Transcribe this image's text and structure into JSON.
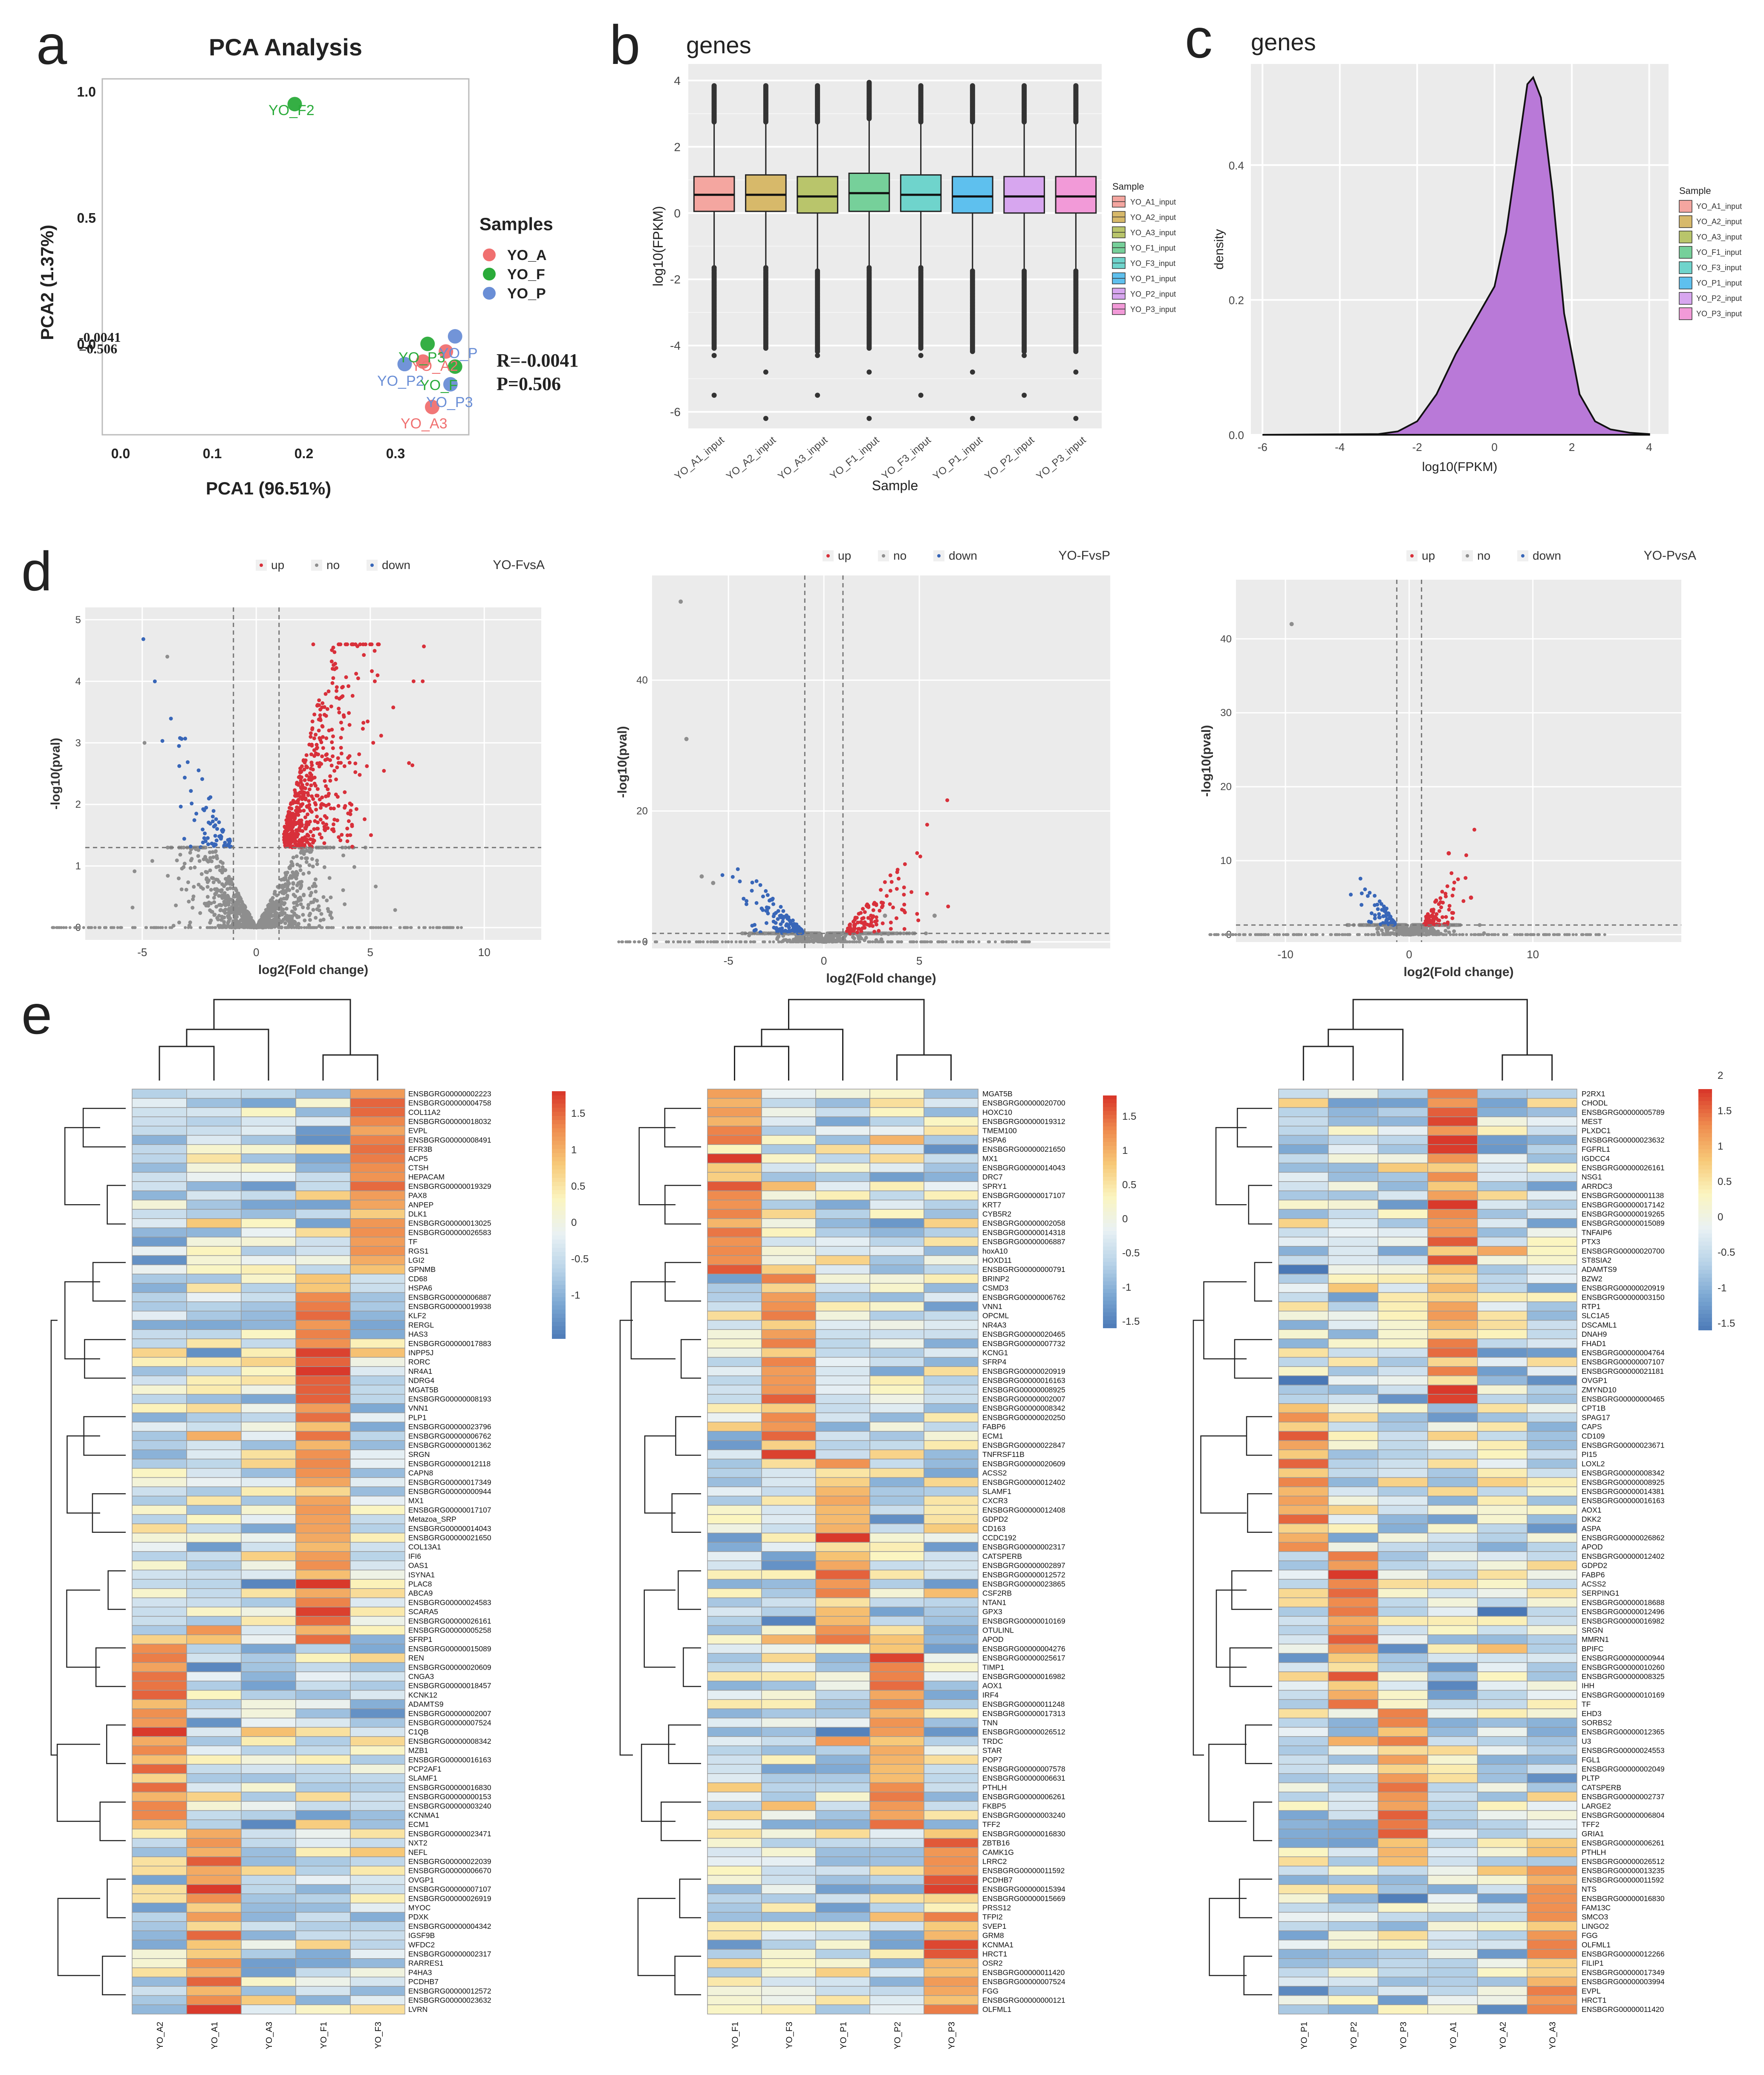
{
  "panel_letters": [
    "a",
    "b",
    "c",
    "d",
    "e"
  ],
  "colors": {
    "YO_A": "#f07070",
    "YO_F": "#2aab3a",
    "YO_P": "#6a8ed6",
    "up": "#d8303a",
    "down": "#3866b8",
    "no": "#8e8e8e",
    "box": [
      "#f4a6a0",
      "#d7b96a",
      "#b9c56b",
      "#76d09a",
      "#6fd4cc",
      "#5ec0ee",
      "#d7a6ef",
      "#f29ad8"
    ],
    "grey_bg": "#ebebeb",
    "density_fill": "#b979d8"
  },
  "chart_data": [
    {
      "id": "pca",
      "type": "scatter",
      "title": "PCA Analysis",
      "xlabel": "PCA1 (96.51%)",
      "ylabel": "PCA2 (1.37%)",
      "xlim": [
        -0.02,
        0.38
      ],
      "ylim": [
        -0.36,
        1.05
      ],
      "xticks": [
        "0.0",
        "0.1",
        "0.2",
        "0.3"
      ],
      "yticks": [
        "0.0",
        "0.5",
        "1.0"
      ],
      "tick_overlay": [
        "-0.0041",
        "=0.506"
      ],
      "legend_title": "Samples",
      "legend": [
        "YO_A",
        "YO_F",
        "YO_P"
      ],
      "stats": [
        "R=-0.0041",
        "P=0.506"
      ],
      "points": [
        {
          "label": "YO_F2",
          "group": "YO_F",
          "x": 0.19,
          "y": 0.95
        },
        {
          "label": "YO_F1",
          "group": "YO_F",
          "x": 0.335,
          "y": 0.0
        },
        {
          "label": "YO_F3",
          "group": "YO_F",
          "x": 0.365,
          "y": -0.09
        },
        {
          "label": "YO_A1",
          "group": "YO_A",
          "x": 0.355,
          "y": -0.03
        },
        {
          "label": "YO_A2",
          "group": "YO_A",
          "x": 0.33,
          "y": -0.07
        },
        {
          "label": "YO_A3",
          "group": "YO_A",
          "x": 0.34,
          "y": -0.25
        },
        {
          "label": "YO_P1",
          "group": "YO_P",
          "x": 0.365,
          "y": 0.03
        },
        {
          "label": "YO_P2",
          "group": "YO_P",
          "x": 0.31,
          "y": -0.08
        },
        {
          "label": "YO_P3",
          "group": "YO_P",
          "x": 0.36,
          "y": -0.16
        }
      ],
      "visible_labels": [
        "YO_F2",
        "YO_P2",
        "YO_A3",
        "YO_P3",
        "YO_F",
        "YO_A2",
        "YO_P3",
        "YO_P"
      ]
    },
    {
      "id": "box",
      "type": "box",
      "title": "genes",
      "xlabel": "Sample",
      "ylabel": "log10(FPKM)",
      "ylim": [
        -6.5,
        4.5
      ],
      "yticks": [
        "4",
        "2",
        "0",
        "-2",
        "-4",
        "-6"
      ],
      "legend_title": "Sample",
      "categories": [
        "YO_A1_input",
        "YO_A2_input",
        "YO_A3_input",
        "YO_F1_input",
        "YO_F3_input",
        "YO_P1_input",
        "YO_P2_input",
        "YO_P3_input"
      ],
      "q1": [
        0.05,
        0.05,
        0.0,
        0.05,
        0.05,
        0.0,
        0.0,
        0.0
      ],
      "median": [
        0.55,
        0.55,
        0.5,
        0.6,
        0.55,
        0.5,
        0.5,
        0.5
      ],
      "q3": [
        1.1,
        1.15,
        1.1,
        1.2,
        1.15,
        1.1,
        1.1,
        1.1
      ],
      "whisker_low": [
        -1.6,
        -1.6,
        -1.7,
        -1.6,
        -1.6,
        -1.7,
        -1.7,
        -1.7
      ],
      "whisker_high": [
        2.7,
        2.7,
        2.7,
        2.8,
        2.7,
        2.7,
        2.7,
        2.7
      ]
    },
    {
      "id": "density",
      "type": "area",
      "title": "genes",
      "xlabel": "log10(FPKM)",
      "ylabel": "density",
      "xlim": [
        -6.3,
        4.5
      ],
      "ylim": [
        0,
        0.55
      ],
      "xticks": [
        "-6",
        "-4",
        "-2",
        "0",
        "2",
        "4"
      ],
      "yticks": [
        "0.0",
        "0.2",
        "0.4"
      ],
      "legend_title": "Sample",
      "legend": [
        "YO_A1_input",
        "YO_A2_input",
        "YO_A3_input",
        "YO_F1_input",
        "YO_F3_input",
        "YO_P1_input",
        "YO_P2_input",
        "YO_P3_input"
      ],
      "x": [
        -6,
        -3,
        -2.5,
        -2,
        -1.5,
        -1,
        -0.5,
        0,
        0.3,
        0.6,
        0.85,
        1.0,
        1.2,
        1.5,
        1.8,
        2.2,
        2.6,
        3,
        3.5,
        4
      ],
      "y": [
        0,
        0.001,
        0.005,
        0.02,
        0.06,
        0.12,
        0.17,
        0.22,
        0.3,
        0.42,
        0.52,
        0.53,
        0.5,
        0.36,
        0.18,
        0.06,
        0.02,
        0.008,
        0.003,
        0.001
      ]
    }
  ],
  "volcano": [
    {
      "title": "YO-FvsA",
      "xlabel": "log2(Fold change)",
      "ylabel": "-log10(pval)",
      "xlim": [
        -7.5,
        12.5
      ],
      "ylim": [
        -0.2,
        5.2
      ],
      "xticks": [
        "-5",
        "0",
        "5",
        "10"
      ],
      "yticks": [
        "0",
        "1",
        "2",
        "3",
        "4",
        "5"
      ],
      "legend": [
        "up",
        "no",
        "down"
      ],
      "vlines": [
        -1,
        1
      ],
      "hline": 1.3
    },
    {
      "title": "YO-FvsP",
      "xlabel": "log2(Fold change)",
      "ylabel": "-log10(pval)",
      "xlim": [
        -9,
        15
      ],
      "ylim": [
        -1,
        56
      ],
      "xticks": [
        "-5",
        "0",
        "5"
      ],
      "yticks": [
        "0",
        "20",
        "40"
      ],
      "legend": [
        "up",
        "no",
        "down"
      ],
      "vlines": [
        -1,
        1
      ],
      "hline": 1.3
    },
    {
      "title": "YO-PvsA",
      "xlabel": "log2(Fold change)",
      "ylabel": "-log10(pval)",
      "xlim": [
        -14,
        22
      ],
      "ylim": [
        -1,
        48
      ],
      "xticks": [
        "-10",
        "0",
        "10"
      ],
      "yticks": [
        "0",
        "10",
        "20",
        "30",
        "40"
      ],
      "legend": [
        "up",
        "no",
        "down"
      ],
      "vlines": [
        -1,
        1
      ],
      "hline": 1.3
    }
  ],
  "heatmaps": [
    {
      "samples": [
        "YO_A2",
        "YO_A1",
        "YO_A3",
        "YO_F1",
        "YO_F3"
      ],
      "scale": [
        "1.5",
        "1",
        "0.5",
        "0",
        "-0.5",
        "-1"
      ],
      "genes": [
        "ENSBGRG00000002223",
        "ENSBGRG00000004758",
        "COL11A2",
        "ENSBGRG00000018032",
        "EVPL",
        "ENSBGRG00000008491",
        "EFR3B",
        "ACP5",
        "CTSH",
        "HEPACAM",
        "ENSBGRG00000019329",
        "PAX8",
        "ANPEP",
        "DLK1",
        "ENSBGRG00000013025",
        "ENSBGRG00000026583",
        "TF",
        "RGS1",
        "LGI2",
        "GPNMB",
        "CD68",
        "HSPA6",
        "ENSBGRG00000006887",
        "ENSBGRG00000019938",
        "KLF2",
        "RERGL",
        "HAS3",
        "ENSBGRG00000017883",
        "INPP5J",
        "RORC",
        "NR4A1",
        "NDRG4",
        "MGAT5B",
        "ENSBGRG00000008193",
        "VNN1",
        "PLP1",
        "ENSBGRG00000023796",
        "ENSBGRG00000006762",
        "ENSBGRG00000001362",
        "SRGN",
        "ENSBGRG00000012118",
        "CAPN8",
        "ENSBGRG00000017349",
        "ENSBGRG00000000944",
        "MX1",
        "ENSBGRG00000017107",
        "Metazoa_SRP",
        "ENSBGRG00000014043",
        "ENSBGRG00000021650",
        "COL13A1",
        "IFI6",
        "OAS1",
        "ISYNA1",
        "PLAC8",
        "ABCA9",
        "ENSBGRG00000024583",
        "SCARA5",
        "ENSBGRG00000026161",
        "ENSBGRG00000005258",
        "SFRP1",
        "ENSBGRG00000015089",
        "REN",
        "ENSBGRG00000020609",
        "CNGA3",
        "ENSBGRG00000018457",
        "KCNK12",
        "ADAMTS9",
        "ENSBGRG00000002007",
        "ENSBGRG00000007524",
        "C1QB",
        "ENSBGRG00000008342",
        "MZB1",
        "ENSBGRG00000016163",
        "PCP2AF1",
        "SLAMF1",
        "ENSBGRG00000016830",
        "ENSBGRG00000000153",
        "ENSBGRG00000003240",
        "KCNMA1",
        "ECM1",
        "ENSBGRG00000023471",
        "NXT2",
        "NEFL",
        "ENSBGRG00000022039",
        "ENSBGRG00000006670",
        "OVGP1",
        "ENSBGRG00000007107",
        "ENSBGRG00000026919",
        "MYOC",
        "PDXK",
        "ENSBGRG00000004342",
        "IGSF9B",
        "WFDC2",
        "ENSBGRG00000002317",
        "RARRES1",
        "P4HA3",
        "PCDHB7",
        "ENSBGRG00000012572",
        "ENSBGRG00000023632",
        "LVRN"
      ]
    },
    {
      "samples": [
        "YO_F1",
        "YO_F3",
        "YO_P1",
        "YO_P2",
        "YO_P3"
      ],
      "scale": [
        "1.5",
        "1",
        "0.5",
        "0",
        "-0.5",
        "-1",
        "-1.5"
      ],
      "genes": [
        "MGAT5B",
        "ENSBGRG00000020700",
        "HOXC10",
        "ENSBGRG00000019312",
        "TMEM100",
        "HSPA6",
        "ENSBGRG00000021650",
        "MX1",
        "ENSBGRG00000014043",
        "DRC7",
        "SPRY1",
        "ENSBGRG00000017107",
        "KRT7",
        "CYB5R2",
        "ENSBGRG00000002058",
        "ENSBGRG00000014318",
        "ENSBGRG00000006887",
        "hoxA10",
        "HOXD11",
        "ENSBGRG00000000791",
        "BRINP2",
        "CSMD3",
        "ENSBGRG00000006762",
        "VNN1",
        "OPCML",
        "NR4A3",
        "ENSBGRG00000020465",
        "ENSBGRG00000007732",
        "KCNG1",
        "SFRP4",
        "ENSBGRG00000020919",
        "ENSBGRG00000016163",
        "ENSBGRG00000008925",
        "ENSBGRG00000002007",
        "ENSBGRG00000008342",
        "ENSBGRG00000020250",
        "FABP6",
        "ECM1",
        "ENSBGRG00000022847",
        "TNFRSF11B",
        "ENSBGRG00000020609",
        "ACSS2",
        "ENSBGRG00000012402",
        "SLAMF1",
        "CXCR3",
        "ENSBGRG00000012408",
        "GDPD2",
        "CD163",
        "CCDC192",
        "ENSBGRG00000002317",
        "CATSPERB",
        "ENSBGRG00000002897",
        "ENSBGRG00000012572",
        "ENSBGRG00000023865",
        "CSF2RB",
        "NTAN1",
        "GPX3",
        "ENSBGRG00000010169",
        "OTULINL",
        "APOD",
        "ENSBGRG00000004276",
        "ENSBGRG00000025617",
        "TIMP1",
        "ENSBGRG00000016982",
        "AOX1",
        "IRF4",
        "ENSBGRG00000011248",
        "ENSBGRG00000017313",
        "TNN",
        "ENSBGRG00000026512",
        "TRDC",
        "STAR",
        "POP7",
        "ENSBGRG00000007578",
        "ENSBGRG00000006631",
        "PTHLH",
        "ENSBGRG00000006261",
        "FKBP5",
        "ENSBGRG00000003240",
        "TFF2",
        "ENSBGRG00000016830",
        "ZBTB16",
        "CAMK1G",
        "LRRC2",
        "ENSBGRG00000011592",
        "PCDHB7",
        "ENSBGRG00000015394",
        "ENSBGRG00000015669",
        "PRSS12",
        "TFPI2",
        "SVEP1",
        "GRM8",
        "KCNMA1",
        "HRCT1",
        "OSR2",
        "ENSBGRG00000011420",
        "ENSBGRG00000007524",
        "FGG",
        "ENSBGRG00000000121",
        "OLFML1"
      ]
    },
    {
      "samples": [
        "YO_P1",
        "YO_P2",
        "YO_P3",
        "YO_A1",
        "YO_A2",
        "YO_A3"
      ],
      "scale": [
        "2",
        "1.5",
        "1",
        "0.5",
        "0",
        "-0.5",
        "-1",
        "-1.5"
      ],
      "genes": [
        "P2RX1",
        "CHODL",
        "ENSBGRG00000005789",
        "MEST",
        "PLXDC1",
        "ENSBGRG00000023632",
        "FGFRL1",
        "IGDCC4",
        "ENSBGRG00000026161",
        "NSG1",
        "ARRDC3",
        "ENSBGRG00000001138",
        "ENSBGRG00000017142",
        "ENSBGRG00000019265",
        "ENSBGRG00000015089",
        "TNFAIP6",
        "PTX3",
        "ENSBGRG00000020700",
        "ST8SIA2",
        "ADAMTS9",
        "BZW2",
        "ENSBGRG00000020919",
        "ENSBGRG00000003150",
        "RTP1",
        "SLC1A5",
        "DSCAML1",
        "DNAH9",
        "FHAD1",
        "ENSBGRG00000004764",
        "ENSBGRG00000007107",
        "ENSBGRG00000021181",
        "OVGP1",
        "ZMYND10",
        "ENSBGRG00000000465",
        "CPT1B",
        "SPAG17",
        "CAPS",
        "CD109",
        "ENSBGRG00000023671",
        "PI15",
        "LOXL2",
        "ENSBGRG00000008342",
        "ENSBGRG00000008925",
        "ENSBGRG00000014381",
        "ENSBGRG00000016163",
        "AOX1",
        "DKK2",
        "ASPA",
        "ENSBGRG00000026862",
        "APOD",
        "ENSBGRG00000012402",
        "GDPD2",
        "FABP6",
        "ACSS2",
        "SERPING1",
        "ENSBGRG00000018688",
        "ENSBGRG00000012496",
        "ENSBGRG00000016982",
        "SRGN",
        "MMRN1",
        "BPIFC",
        "ENSBGRG00000000944",
        "ENSBGRG00000010260",
        "ENSBGRG00000008325",
        "IHH",
        "ENSBGRG00000010169",
        "TF",
        "EHD3",
        "SORBS2",
        "ENSBGRG00000012365",
        "U3",
        "ENSBGRG00000024553",
        "FGL1",
        "ENSBGRG00000002049",
        "PLTP",
        "CATSPERB",
        "ENSBGRG00000002737",
        "LARGE2",
        "ENSBGRG00000006804",
        "TFF2",
        "GRIA1",
        "ENSBGRG00000006261",
        "PTHLH",
        "ENSBGRG00000026512",
        "ENSBGRG00000013235",
        "ENSBGRG00000011592",
        "NTS",
        "ENSBGRG00000016830",
        "FAM13C",
        "SMCO3",
        "LINGO2",
        "FGG",
        "OLFML1",
        "ENSBGRG00000012266",
        "FILIP1",
        "ENSBGRG00000017349",
        "ENSBGRG00000003994",
        "EVPL",
        "HRCT1",
        "ENSBGRG00000011420"
      ]
    }
  ]
}
